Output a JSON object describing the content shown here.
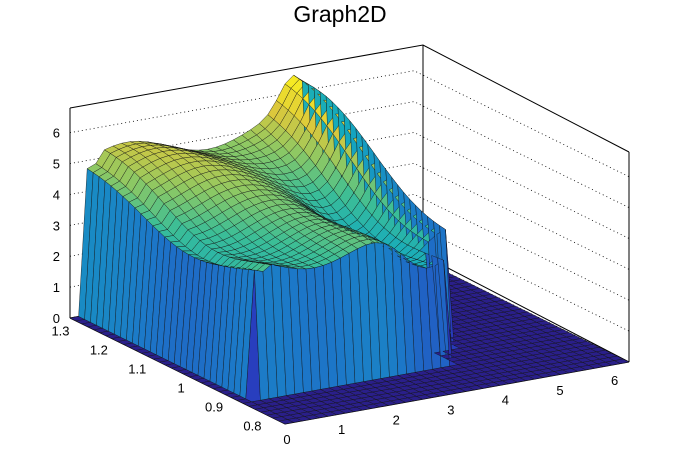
{
  "chart_data": {
    "type": "surface",
    "title": "Graph2D",
    "colormap": "viridis",
    "axes": {
      "x": {
        "range": [
          0,
          6.3
        ],
        "ticks": [
          "0",
          "1",
          "2",
          "3",
          "4",
          "5",
          "6"
        ]
      },
      "y": {
        "range": [
          0.77,
          1.33
        ],
        "ticks": [
          "0.8",
          "0.9",
          "1",
          "1.1",
          "1.2",
          "1.3"
        ]
      },
      "z": {
        "range": [
          0,
          6.8
        ],
        "ticks": [
          "0",
          "1",
          "2",
          "3",
          "4",
          "5",
          "6"
        ]
      }
    },
    "grid": "dotted lines on back walls",
    "surface_outline": {
      "description": "surface height z(x,y): zero outside a raised block roughly x in [0.3,3.8], y in [0.88,1.33]; top surface ~4-6.5",
      "top_surface_samples": [
        {
          "x": 0.3,
          "y": 1.3,
          "z": 5.0
        },
        {
          "x": 1.0,
          "y": 1.3,
          "z": 5.1
        },
        {
          "x": 2.0,
          "y": 1.3,
          "z": 5.2
        },
        {
          "x": 3.0,
          "y": 1.3,
          "z": 5.4
        },
        {
          "x": 4.0,
          "y": 1.3,
          "z": 6.2
        },
        {
          "x": 4.3,
          "y": 1.3,
          "z": 6.0
        },
        {
          "x": 0.3,
          "y": 1.1,
          "z": 4.4
        },
        {
          "x": 2.0,
          "y": 1.1,
          "z": 4.6
        },
        {
          "x": 3.5,
          "y": 1.1,
          "z": 3.4
        },
        {
          "x": 4.2,
          "y": 1.1,
          "z": 4.6
        },
        {
          "x": 0.5,
          "y": 0.9,
          "z": 3.6
        },
        {
          "x": 1.5,
          "y": 0.9,
          "z": 4.3
        },
        {
          "x": 2.5,
          "y": 0.9,
          "z": 3.0
        },
        {
          "x": 3.6,
          "y": 0.9,
          "z": 2.4
        }
      ]
    }
  }
}
